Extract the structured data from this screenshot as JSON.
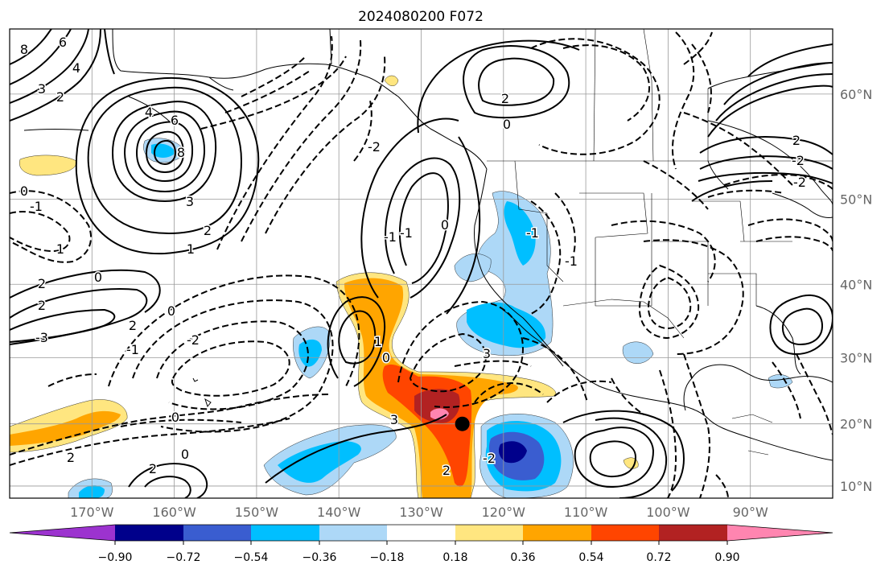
{
  "title": "2024080200 F072",
  "map": {
    "lon_range": [
      -180,
      -80
    ],
    "lat_range": [
      8,
      65
    ],
    "lat_labels": [
      "60°N",
      "50°N",
      "40°N",
      "30°N",
      "20°N",
      "10°N"
    ],
    "lon_labels": [
      "170°W",
      "160°W",
      "150°W",
      "140°W",
      "130°W",
      "120°W",
      "110°W",
      "100°W",
      "90°W"
    ],
    "marker": {
      "lon": -125,
      "lat": 20
    }
  },
  "colorbar": {
    "tick_labels": [
      "−0.90",
      "−0.72",
      "−0.54",
      "−0.36",
      "−0.18",
      "0.18",
      "0.36",
      "0.54",
      "0.72",
      "0.90"
    ],
    "colors": [
      "#9c33cf",
      "#00008b",
      "#3a5dd0",
      "#00bfff",
      "#add8f7",
      "#ffffff",
      "#ffe680",
      "#ffa500",
      "#ff4500",
      "#b22222",
      "#ff85b0"
    ]
  },
  "contour_labels": [
    "8",
    "6",
    "4",
    "3",
    "2",
    "6",
    "4",
    "8",
    "3",
    "2",
    "1",
    "0",
    "2",
    "2",
    "1",
    "0",
    "-1",
    "0",
    "2",
    "-3",
    "-2",
    "0",
    "-1",
    "0",
    "2",
    "2",
    "1",
    "-1",
    "0",
    "-1",
    "-2",
    "0",
    "3",
    "2",
    "-2",
    "3",
    "2",
    "0",
    "-1",
    "-1",
    "2",
    "-2",
    "-2"
  ]
}
